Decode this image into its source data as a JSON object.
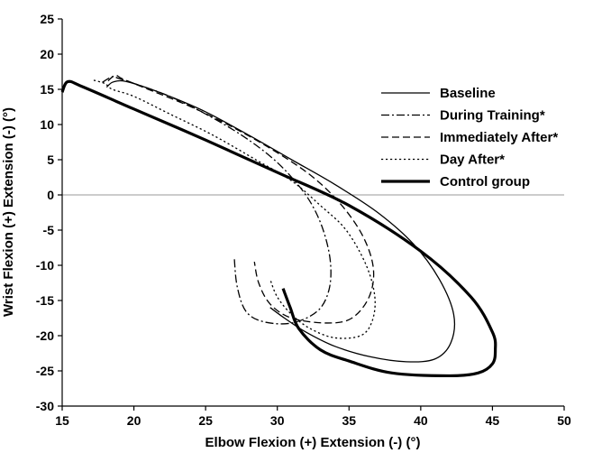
{
  "chart_data": {
    "type": "line",
    "title": "",
    "xlabel": "Elbow Flexion (+) Extension (-) (°)",
    "ylabel": "Wrist Flexion (+) Extension (-) (°)",
    "xlim": [
      15,
      50
    ],
    "ylim": [
      -30,
      25
    ],
    "xticks": [
      15,
      20,
      25,
      30,
      35,
      40,
      45,
      50
    ],
    "yticks": [
      -30,
      -25,
      -20,
      -15,
      -10,
      -5,
      0,
      5,
      10,
      15,
      20,
      25
    ],
    "xtick_labels": [
      "15",
      "20",
      "25",
      "30",
      "35",
      "40",
      "45",
      "50"
    ],
    "ytick_labels": [
      "-30",
      "-25",
      "-20",
      "-15",
      "-10",
      "-5",
      "0",
      "5",
      "10",
      "15",
      "20",
      "25"
    ],
    "grid": false,
    "zero_line": true,
    "legend_position": "top-right",
    "series": [
      {
        "name": "Baseline",
        "style": "solid",
        "width": 1.3,
        "color": "#000000",
        "points": [
          [
            18.1,
            15.3
          ],
          [
            18.5,
            16.0
          ],
          [
            19.2,
            16.2
          ],
          [
            20.5,
            15.5
          ],
          [
            22.5,
            14.0
          ],
          [
            25.0,
            11.8
          ],
          [
            28.0,
            8.5
          ],
          [
            31.0,
            5.0
          ],
          [
            34.0,
            1.5
          ],
          [
            37.0,
            -2.5
          ],
          [
            39.5,
            -7.0
          ],
          [
            41.3,
            -12.0
          ],
          [
            42.3,
            -17.0
          ],
          [
            42.1,
            -21.0
          ],
          [
            41.0,
            -23.3
          ],
          [
            39.0,
            -23.7
          ],
          [
            36.5,
            -23.0
          ],
          [
            34.0,
            -21.5
          ],
          [
            32.0,
            -19.5
          ],
          [
            30.5,
            -17.5
          ],
          [
            29.5,
            -16.0
          ]
        ]
      },
      {
        "name": "During Training*",
        "style": "dashdot",
        "width": 1.3,
        "color": "#000000",
        "points": [
          [
            17.8,
            16.0
          ],
          [
            18.5,
            16.8
          ],
          [
            19.0,
            16.5
          ],
          [
            20.5,
            15.5
          ],
          [
            22.5,
            14.0
          ],
          [
            25.0,
            11.5
          ],
          [
            27.5,
            8.5
          ],
          [
            29.5,
            5.5
          ],
          [
            31.0,
            2.5
          ],
          [
            32.3,
            -1.0
          ],
          [
            33.2,
            -5.0
          ],
          [
            33.7,
            -9.5
          ],
          [
            33.6,
            -13.5
          ],
          [
            32.8,
            -16.5
          ],
          [
            31.0,
            -18.2
          ],
          [
            29.0,
            -18.0
          ],
          [
            27.8,
            -16.5
          ],
          [
            27.2,
            -13.0
          ],
          [
            27.0,
            -9.0
          ]
        ]
      },
      {
        "name": "Immediately After*",
        "style": "dashed",
        "width": 1.3,
        "color": "#000000",
        "points": [
          [
            18.2,
            16.2
          ],
          [
            18.7,
            17.0
          ],
          [
            19.2,
            16.5
          ],
          [
            21.0,
            15.0
          ],
          [
            24.0,
            12.5
          ],
          [
            27.0,
            9.5
          ],
          [
            30.0,
            6.0
          ],
          [
            32.5,
            2.5
          ],
          [
            34.5,
            -1.5
          ],
          [
            36.0,
            -6.0
          ],
          [
            36.7,
            -10.5
          ],
          [
            36.4,
            -14.5
          ],
          [
            35.2,
            -17.5
          ],
          [
            33.5,
            -18.2
          ],
          [
            31.0,
            -17.5
          ],
          [
            29.5,
            -15.5
          ],
          [
            28.7,
            -12.5
          ],
          [
            28.4,
            -9.5
          ]
        ]
      },
      {
        "name": "Day After*",
        "style": "dotted",
        "width": 1.3,
        "color": "#000000",
        "points": [
          [
            17.2,
            16.3
          ],
          [
            18.0,
            15.8
          ],
          [
            18.5,
            15.0
          ],
          [
            20.0,
            14.0
          ],
          [
            22.5,
            11.5
          ],
          [
            25.5,
            8.5
          ],
          [
            28.5,
            5.0
          ],
          [
            31.0,
            2.0
          ],
          [
            33.0,
            -1.5
          ],
          [
            34.8,
            -5.0
          ],
          [
            36.2,
            -10.0
          ],
          [
            36.8,
            -14.5
          ],
          [
            36.6,
            -18.0
          ],
          [
            35.8,
            -20.0
          ],
          [
            34.0,
            -20.3
          ],
          [
            32.3,
            -19.0
          ],
          [
            31.0,
            -17.0
          ],
          [
            30.0,
            -14.5
          ],
          [
            29.5,
            -12.0
          ]
        ]
      },
      {
        "name": "Control group",
        "style": "solid",
        "width": 3.2,
        "color": "#000000",
        "points": [
          [
            15.0,
            14.6
          ],
          [
            15.4,
            16.1
          ],
          [
            16.5,
            15.3
          ],
          [
            20.0,
            12.2
          ],
          [
            25.0,
            7.8
          ],
          [
            30.0,
            3.2
          ],
          [
            35.0,
            -1.5
          ],
          [
            40.0,
            -8.0
          ],
          [
            43.5,
            -14.5
          ],
          [
            45.0,
            -19.5
          ],
          [
            45.2,
            -22.0
          ],
          [
            45.0,
            -24.0
          ],
          [
            44.0,
            -25.3
          ],
          [
            42.0,
            -25.7
          ],
          [
            38.0,
            -25.3
          ],
          [
            35.0,
            -23.6
          ],
          [
            33.0,
            -22.0
          ],
          [
            31.5,
            -19.0
          ],
          [
            30.9,
            -16.0
          ],
          [
            30.4,
            -13.3
          ]
        ]
      }
    ]
  }
}
